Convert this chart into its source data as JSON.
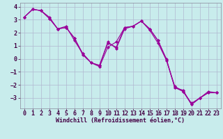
{
  "xlabel": "Windchill (Refroidissement éolien,°C)",
  "background_color": "#c8ecec",
  "grid_color": "#b0b8d0",
  "line_color": "#990099",
  "x_hours": [
    0,
    1,
    2,
    3,
    4,
    5,
    6,
    7,
    8,
    9,
    10,
    11,
    12,
    13,
    14,
    15,
    16,
    17,
    18,
    19,
    20,
    21,
    22,
    23
  ],
  "series1": [
    3.2,
    3.8,
    3.7,
    3.1,
    2.3,
    2.4,
    1.6,
    0.4,
    -0.3,
    -0.5,
    1.3,
    0.8,
    2.3,
    2.5,
    2.9,
    2.2,
    1.2,
    -0.1,
    -2.2,
    -2.5,
    -3.5,
    -3.0,
    -2.6,
    -2.6
  ],
  "series2": [
    3.2,
    3.8,
    3.7,
    3.2,
    2.3,
    2.5,
    1.4,
    0.4,
    -0.3,
    -0.5,
    1.2,
    0.9,
    2.4,
    2.5,
    2.9,
    2.3,
    1.4,
    -0.1,
    -2.1,
    -2.5,
    -3.4,
    -3.0,
    -2.6,
    -2.6
  ],
  "series3": [
    3.2,
    3.8,
    3.7,
    3.1,
    2.3,
    2.4,
    1.6,
    0.3,
    -0.3,
    -0.6,
    0.9,
    1.3,
    2.4,
    2.5,
    2.9,
    2.3,
    1.4,
    0.0,
    -2.2,
    -2.4,
    -3.5,
    -3.0,
    -2.5,
    -2.6
  ],
  "ylim": [
    -3.8,
    4.3
  ],
  "yticks": [
    -3,
    -2,
    -1,
    0,
    1,
    2,
    3,
    4
  ],
  "xticks": [
    0,
    1,
    2,
    3,
    4,
    5,
    6,
    7,
    8,
    9,
    10,
    11,
    12,
    13,
    14,
    15,
    16,
    17,
    18,
    19,
    20,
    21,
    22,
    23
  ],
  "xlabel_fontsize": 6,
  "tick_fontsize": 6,
  "line_width": 0.8,
  "marker": "D",
  "marker_size": 2.0
}
